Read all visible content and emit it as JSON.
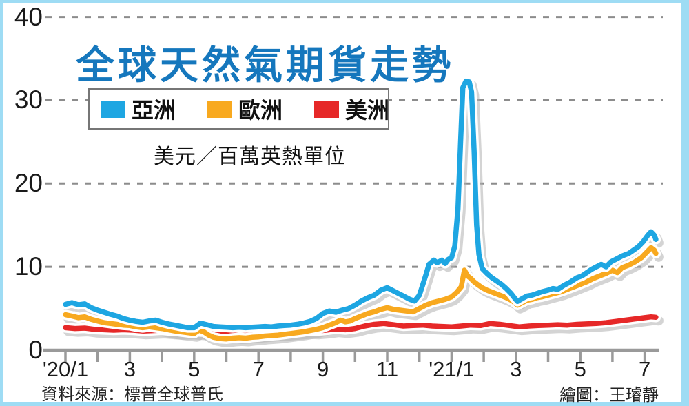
{
  "title": "全球天然氣期貨走勢",
  "unit_label": "美元／百萬英熱單位",
  "source": "資料來源：標普全球普氏",
  "credit": "繪圖：王璿靜",
  "colors": {
    "title": "#1577BD",
    "frame": "#9EDCF4",
    "grid": "#8c8c8c",
    "axis": "#9a9a9a",
    "shadow": "#b0b0b0",
    "asia": "#1EA6E2",
    "europe": "#F8A91F",
    "americas": "#E62828"
  },
  "legend": {
    "items": [
      {
        "label": "亞洲",
        "color": "#1EA6E2"
      },
      {
        "label": "歐洲",
        "color": "#F8A91F"
      },
      {
        "label": "美洲",
        "color": "#E62828"
      }
    ]
  },
  "chart_data": {
    "type": "line",
    "title": "全球天然氣期貨走勢",
    "ylabel": "美元／百萬英熱單位",
    "ylim": [
      0,
      40
    ],
    "y_ticks": [
      40,
      30,
      20,
      10,
      0
    ],
    "x_note": "x = months since Jan 2020; range Jan 2020 - mid Jul 2021",
    "x_ticks": [
      {
        "m": 0,
        "label": "'20/1"
      },
      {
        "m": 2,
        "label": "3"
      },
      {
        "m": 4,
        "label": "5"
      },
      {
        "m": 6,
        "label": "7"
      },
      {
        "m": 8,
        "label": "9"
      },
      {
        "m": 10,
        "label": "11"
      },
      {
        "m": 12,
        "label": "'21/1"
      },
      {
        "m": 14,
        "label": "3"
      },
      {
        "m": 16,
        "label": "5"
      },
      {
        "m": 18,
        "label": "7"
      }
    ],
    "grid": "dashed-horizontal",
    "legend_position": "top-left-box",
    "series": [
      {
        "name": "亞洲",
        "color": "#1EA6E2",
        "points": [
          [
            0,
            5.5
          ],
          [
            0.2,
            5.7
          ],
          [
            0.4,
            5.45
          ],
          [
            0.6,
            5.55
          ],
          [
            0.8,
            5.1
          ],
          [
            1,
            4.8
          ],
          [
            1.2,
            4.55
          ],
          [
            1.4,
            4.3
          ],
          [
            1.6,
            4.1
          ],
          [
            1.8,
            3.8
          ],
          [
            2,
            3.6
          ],
          [
            2.2,
            3.45
          ],
          [
            2.4,
            3.35
          ],
          [
            2.6,
            3.5
          ],
          [
            2.8,
            3.6
          ],
          [
            3,
            3.35
          ],
          [
            3.2,
            3.15
          ],
          [
            3.4,
            3
          ],
          [
            3.6,
            2.85
          ],
          [
            3.8,
            2.7
          ],
          [
            4,
            2.7
          ],
          [
            4.2,
            3.25
          ],
          [
            4.4,
            3.05
          ],
          [
            4.6,
            2.85
          ],
          [
            4.8,
            2.8
          ],
          [
            5,
            2.75
          ],
          [
            5.2,
            2.7
          ],
          [
            5.4,
            2.75
          ],
          [
            5.6,
            2.7
          ],
          [
            5.8,
            2.75
          ],
          [
            6,
            2.8
          ],
          [
            6.2,
            2.85
          ],
          [
            6.4,
            2.8
          ],
          [
            6.6,
            2.9
          ],
          [
            6.8,
            2.95
          ],
          [
            7,
            3
          ],
          [
            7.2,
            3.1
          ],
          [
            7.4,
            3.25
          ],
          [
            7.6,
            3.45
          ],
          [
            7.8,
            3.8
          ],
          [
            8,
            4.4
          ],
          [
            8.2,
            4.7
          ],
          [
            8.4,
            4.55
          ],
          [
            8.6,
            4.8
          ],
          [
            8.8,
            5
          ],
          [
            9,
            5.4
          ],
          [
            9.2,
            5.9
          ],
          [
            9.4,
            6.3
          ],
          [
            9.6,
            6.6
          ],
          [
            9.8,
            7.2
          ],
          [
            10,
            7.5
          ],
          [
            10.15,
            7.2
          ],
          [
            10.3,
            6.9
          ],
          [
            10.5,
            6.5
          ],
          [
            10.7,
            6.1
          ],
          [
            10.85,
            5.9
          ],
          [
            11,
            6.6
          ],
          [
            11.1,
            7.8
          ],
          [
            11.2,
            9
          ],
          [
            11.3,
            10.3
          ],
          [
            11.45,
            10.8
          ],
          [
            11.55,
            10.5
          ],
          [
            11.7,
            10.8
          ],
          [
            11.8,
            10.4
          ],
          [
            11.9,
            10.9
          ],
          [
            12,
            11.1
          ],
          [
            12.1,
            12.5
          ],
          [
            12.2,
            17
          ],
          [
            12.28,
            25
          ],
          [
            12.35,
            31.5
          ],
          [
            12.45,
            32.3
          ],
          [
            12.55,
            32.2
          ],
          [
            12.62,
            31
          ],
          [
            12.7,
            24
          ],
          [
            12.78,
            15
          ],
          [
            12.85,
            11.5
          ],
          [
            12.95,
            9.8
          ],
          [
            13.1,
            9.2
          ],
          [
            13.25,
            8.7
          ],
          [
            13.4,
            8.3
          ],
          [
            13.55,
            7.9
          ],
          [
            13.7,
            7.4
          ],
          [
            13.85,
            6.8
          ],
          [
            13.95,
            6.3
          ],
          [
            14.05,
            5.85
          ],
          [
            14.2,
            6.2
          ],
          [
            14.35,
            6.5
          ],
          [
            14.5,
            6.6
          ],
          [
            14.65,
            6.8
          ],
          [
            14.8,
            7
          ],
          [
            15,
            7.2
          ],
          [
            15.15,
            7.4
          ],
          [
            15.3,
            7.3
          ],
          [
            15.5,
            7.8
          ],
          [
            15.7,
            8.2
          ],
          [
            15.9,
            8.7
          ],
          [
            16.05,
            8.9
          ],
          [
            16.2,
            9.3
          ],
          [
            16.35,
            9.7
          ],
          [
            16.5,
            10
          ],
          [
            16.65,
            10.3
          ],
          [
            16.8,
            10
          ],
          [
            16.95,
            10.6
          ],
          [
            17.1,
            10.9
          ],
          [
            17.3,
            11.3
          ],
          [
            17.5,
            11.6
          ],
          [
            17.65,
            12
          ],
          [
            17.8,
            12.4
          ],
          [
            17.95,
            13
          ],
          [
            18.1,
            13.8
          ],
          [
            18.2,
            14.2
          ],
          [
            18.3,
            13.8
          ],
          [
            18.35,
            13.3
          ]
        ]
      },
      {
        "name": "歐洲",
        "color": "#F8A91F",
        "points": [
          [
            0,
            4.25
          ],
          [
            0.2,
            4.1
          ],
          [
            0.4,
            3.9
          ],
          [
            0.6,
            4
          ],
          [
            0.8,
            3.7
          ],
          [
            1,
            3.5
          ],
          [
            1.2,
            3.3
          ],
          [
            1.4,
            3.2
          ],
          [
            1.6,
            3.1
          ],
          [
            1.8,
            3
          ],
          [
            2,
            2.95
          ],
          [
            2.2,
            2.8
          ],
          [
            2.4,
            2.7
          ],
          [
            2.6,
            2.8
          ],
          [
            2.8,
            2.7
          ],
          [
            3,
            2.6
          ],
          [
            3.2,
            2.45
          ],
          [
            3.4,
            2.3
          ],
          [
            3.6,
            2.2
          ],
          [
            3.8,
            2.1
          ],
          [
            4,
            2
          ],
          [
            4.15,
            2.4
          ],
          [
            4.3,
            2.2
          ],
          [
            4.45,
            1.8
          ],
          [
            4.6,
            1.55
          ],
          [
            4.8,
            1.4
          ],
          [
            5,
            1.35
          ],
          [
            5.2,
            1.45
          ],
          [
            5.4,
            1.5
          ],
          [
            5.6,
            1.45
          ],
          [
            5.8,
            1.55
          ],
          [
            6,
            1.6
          ],
          [
            6.2,
            1.7
          ],
          [
            6.4,
            1.75
          ],
          [
            6.6,
            1.8
          ],
          [
            6.8,
            1.9
          ],
          [
            7,
            2
          ],
          [
            7.2,
            2.1
          ],
          [
            7.4,
            2.2
          ],
          [
            7.6,
            2.35
          ],
          [
            7.8,
            2.5
          ],
          [
            8,
            2.7
          ],
          [
            8.2,
            3
          ],
          [
            8.4,
            3.3
          ],
          [
            8.55,
            3.6
          ],
          [
            8.7,
            3.4
          ],
          [
            8.85,
            3.5
          ],
          [
            9,
            3.8
          ],
          [
            9.2,
            4.1
          ],
          [
            9.4,
            4.4
          ],
          [
            9.6,
            4.6
          ],
          [
            9.8,
            4.9
          ],
          [
            10,
            5.1
          ],
          [
            10.2,
            4.9
          ],
          [
            10.4,
            4.8
          ],
          [
            10.6,
            4.7
          ],
          [
            10.8,
            4.6
          ],
          [
            11,
            5
          ],
          [
            11.2,
            5.4
          ],
          [
            11.4,
            5.7
          ],
          [
            11.6,
            5.9
          ],
          [
            11.8,
            6.1
          ],
          [
            12,
            6.4
          ],
          [
            12.15,
            6.9
          ],
          [
            12.3,
            7.6
          ],
          [
            12.4,
            9.6
          ],
          [
            12.5,
            8.9
          ],
          [
            12.6,
            8.6
          ],
          [
            12.7,
            8.2
          ],
          [
            12.8,
            7.9
          ],
          [
            12.95,
            7.5
          ],
          [
            13.1,
            7.2
          ],
          [
            13.3,
            6.9
          ],
          [
            13.5,
            6.6
          ],
          [
            13.7,
            6.3
          ],
          [
            13.9,
            5.9
          ],
          [
            14.05,
            5.4
          ],
          [
            14.2,
            5.7
          ],
          [
            14.35,
            6
          ],
          [
            14.5,
            6.1
          ],
          [
            14.65,
            6.3
          ],
          [
            14.8,
            6.4
          ],
          [
            15,
            6.6
          ],
          [
            15.2,
            6.8
          ],
          [
            15.4,
            7
          ],
          [
            15.6,
            7.3
          ],
          [
            15.8,
            7.6
          ],
          [
            16,
            7.9
          ],
          [
            16.2,
            8.2
          ],
          [
            16.4,
            8.6
          ],
          [
            16.6,
            8.9
          ],
          [
            16.8,
            9.2
          ],
          [
            17,
            9.6
          ],
          [
            17.15,
            9.3
          ],
          [
            17.3,
            9.9
          ],
          [
            17.5,
            10.2
          ],
          [
            17.7,
            10.6
          ],
          [
            17.9,
            11.1
          ],
          [
            18.05,
            11.7
          ],
          [
            18.2,
            12.3
          ],
          [
            18.3,
            12
          ],
          [
            18.35,
            11.6
          ]
        ]
      },
      {
        "name": "美洲",
        "color": "#E62828",
        "points": [
          [
            0,
            2.7
          ],
          [
            0.3,
            2.6
          ],
          [
            0.6,
            2.65
          ],
          [
            0.9,
            2.5
          ],
          [
            1.2,
            2.45
          ],
          [
            1.5,
            2.4
          ],
          [
            1.8,
            2.45
          ],
          [
            2.1,
            2.4
          ],
          [
            2.4,
            2.3
          ],
          [
            2.7,
            2.35
          ],
          [
            3,
            2.4
          ],
          [
            3.3,
            2.3
          ],
          [
            3.6,
            2.25
          ],
          [
            3.9,
            2.3
          ],
          [
            4.2,
            2.2
          ],
          [
            4.5,
            2.15
          ],
          [
            4.8,
            2.1
          ],
          [
            5.1,
            1.9
          ],
          [
            5.4,
            1.75
          ],
          [
            5.7,
            1.8
          ],
          [
            6,
            1.9
          ],
          [
            6.3,
            2
          ],
          [
            6.6,
            2.1
          ],
          [
            6.9,
            2.15
          ],
          [
            7.2,
            2.25
          ],
          [
            7.5,
            2.35
          ],
          [
            7.8,
            2.3
          ],
          [
            8.1,
            2.4
          ],
          [
            8.4,
            2.55
          ],
          [
            8.7,
            2.45
          ],
          [
            9,
            2.6
          ],
          [
            9.3,
            2.9
          ],
          [
            9.6,
            3.1
          ],
          [
            9.9,
            3.2
          ],
          [
            10.2,
            3.05
          ],
          [
            10.5,
            2.9
          ],
          [
            10.8,
            2.95
          ],
          [
            11.1,
            3
          ],
          [
            11.4,
            2.9
          ],
          [
            11.7,
            2.85
          ],
          [
            12,
            2.8
          ],
          [
            12.3,
            2.9
          ],
          [
            12.6,
            3
          ],
          [
            12.9,
            2.95
          ],
          [
            13.2,
            3.2
          ],
          [
            13.5,
            3.1
          ],
          [
            13.8,
            2.95
          ],
          [
            14.1,
            2.8
          ],
          [
            14.4,
            2.9
          ],
          [
            14.7,
            2.95
          ],
          [
            15,
            3
          ],
          [
            15.3,
            3.05
          ],
          [
            15.6,
            3
          ],
          [
            15.9,
            3.1
          ],
          [
            16.2,
            3.15
          ],
          [
            16.5,
            3.2
          ],
          [
            16.8,
            3.3
          ],
          [
            17.1,
            3.45
          ],
          [
            17.4,
            3.6
          ],
          [
            17.7,
            3.75
          ],
          [
            18,
            3.9
          ],
          [
            18.2,
            4
          ],
          [
            18.35,
            3.95
          ]
        ]
      }
    ]
  }
}
